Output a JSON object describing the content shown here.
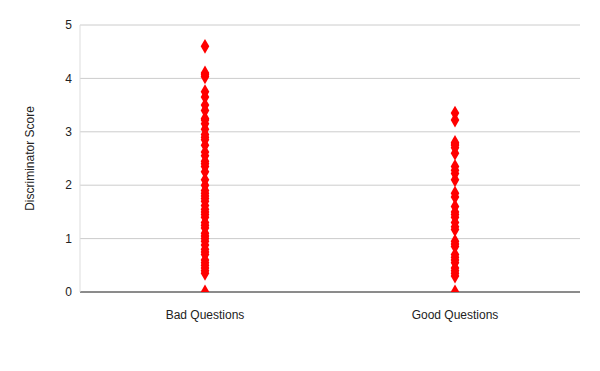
{
  "chart_data": {
    "type": "scatter",
    "y_label": "Discriminator Score",
    "categories": [
      "Bad Questions",
      "Good Questions"
    ],
    "values": [
      [
        4.6,
        4.1,
        4.07,
        4.03,
        3.75,
        3.65,
        3.5,
        3.4,
        3.25,
        3.22,
        3.15,
        3.05,
        2.95,
        2.9,
        2.85,
        2.75,
        2.62,
        2.55,
        2.45,
        2.4,
        2.35,
        2.25,
        2.1,
        2.0,
        1.9,
        1.85,
        1.8,
        1.75,
        1.7,
        1.62,
        1.55,
        1.5,
        1.45,
        1.4,
        1.3,
        1.25,
        1.2,
        1.1,
        1.05,
        1.0,
        0.95,
        0.88,
        0.8,
        0.75,
        0.7,
        0.6,
        0.55,
        0.5,
        0.45,
        0.4,
        0.35,
        0
      ],
      [
        3.35,
        3.22,
        2.8,
        2.77,
        2.75,
        2.7,
        2.6,
        2.35,
        2.28,
        2.22,
        2.1,
        1.85,
        1.78,
        1.6,
        1.5,
        1.45,
        1.4,
        1.3,
        1.22,
        1.17,
        0.95,
        0.9,
        0.85,
        0.7,
        0.65,
        0.6,
        0.55,
        0.45,
        0.4,
        0.35,
        0.3,
        0
      ]
    ],
    "color": "#ff0000",
    "marker": "diamond",
    "ylim": [
      0,
      5
    ],
    "yticks": [
      0,
      1,
      2,
      3,
      4,
      5
    ],
    "grid": true
  }
}
